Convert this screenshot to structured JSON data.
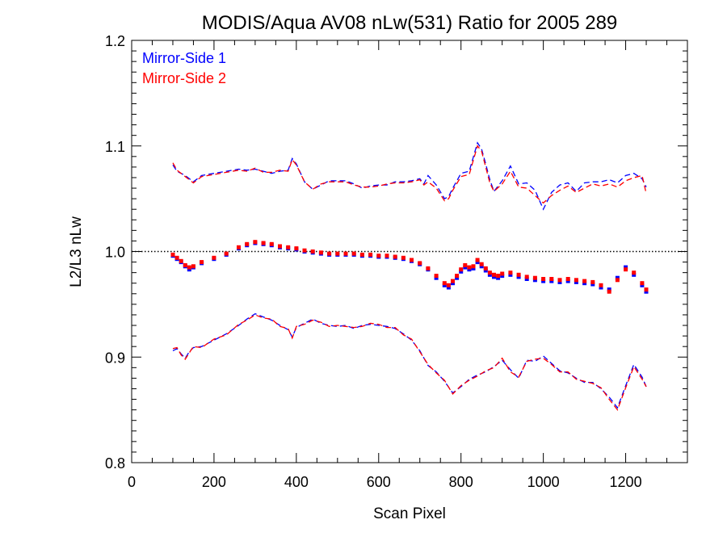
{
  "colors": {
    "series1": "#0000ff",
    "series2": "#ff0000",
    "reference": "#000000",
    "axis": "#000000"
  },
  "chart_data": {
    "type": "scatter",
    "title": "MODIS/Aqua AV08 nLw(531) Ratio for 2005 289",
    "xlabel": "Scan Pixel",
    "ylabel": "L2/L3 nLw",
    "xlim": [
      0,
      1350
    ],
    "ylim": [
      0.8,
      1.2
    ],
    "xticks": [
      0,
      200,
      400,
      600,
      800,
      1000,
      1200
    ],
    "xtick_labels": [
      "0",
      "200",
      "400",
      "600",
      "800",
      "1000",
      "1200"
    ],
    "yticks": [
      0.8,
      0.9,
      1.0,
      1.1,
      1.2
    ],
    "ytick_labels": [
      "0.8",
      "0.9",
      "1.0",
      "1.1",
      "1.2"
    ],
    "legend_position": "top-left",
    "reference_line": {
      "y": 1.0,
      "style": "dotted"
    },
    "grid": false,
    "series": [
      {
        "name": "Mirror-Side 1",
        "color": "#0000ff",
        "mean": {
          "x": [
            100,
            110,
            120,
            130,
            140,
            150,
            170,
            200,
            230,
            260,
            280,
            300,
            320,
            340,
            360,
            380,
            400,
            420,
            440,
            460,
            480,
            500,
            520,
            540,
            560,
            580,
            600,
            620,
            640,
            660,
            680,
            700,
            720,
            740,
            760,
            770,
            780,
            790,
            800,
            810,
            820,
            830,
            840,
            850,
            860,
            870,
            880,
            890,
            900,
            920,
            940,
            960,
            980,
            1000,
            1020,
            1040,
            1060,
            1080,
            1100,
            1120,
            1140,
            1160,
            1180,
            1200,
            1220,
            1240,
            1250
          ],
          "y": [
            0.996,
            0.993,
            0.99,
            0.986,
            0.983,
            0.985,
            0.989,
            0.993,
            0.997,
            1.003,
            1.006,
            1.008,
            1.007,
            1.006,
            1.004,
            1.003,
            1.002,
            1.0,
            0.999,
            0.998,
            0.997,
            0.997,
            0.997,
            0.997,
            0.996,
            0.996,
            0.995,
            0.995,
            0.994,
            0.993,
            0.991,
            0.988,
            0.983,
            0.975,
            0.968,
            0.966,
            0.97,
            0.975,
            0.981,
            0.985,
            0.983,
            0.984,
            0.99,
            0.986,
            0.982,
            0.978,
            0.976,
            0.975,
            0.977,
            0.978,
            0.976,
            0.974,
            0.973,
            0.972,
            0.972,
            0.971,
            0.972,
            0.971,
            0.97,
            0.969,
            0.966,
            0.964,
            0.975,
            0.985,
            0.978,
            0.968,
            0.962
          ]
        },
        "upper": {
          "x": [
            100,
            110,
            130,
            150,
            170,
            200,
            230,
            260,
            280,
            300,
            320,
            340,
            360,
            380,
            390,
            400,
            420,
            440,
            460,
            480,
            500,
            520,
            540,
            560,
            580,
            600,
            620,
            640,
            660,
            680,
            700,
            710,
            720,
            740,
            760,
            770,
            780,
            800,
            820,
            840,
            850,
            860,
            870,
            880,
            900,
            920,
            940,
            960,
            980,
            1000,
            1020,
            1040,
            1060,
            1080,
            1100,
            1120,
            1140,
            1160,
            1180,
            1200,
            1220,
            1240,
            1250
          ],
          "y": [
            1.082,
            1.076,
            1.072,
            1.066,
            1.072,
            1.074,
            1.076,
            1.078,
            1.077,
            1.078,
            1.076,
            1.074,
            1.076,
            1.077,
            1.088,
            1.083,
            1.066,
            1.059,
            1.063,
            1.067,
            1.067,
            1.067,
            1.064,
            1.06,
            1.062,
            1.063,
            1.063,
            1.066,
            1.066,
            1.067,
            1.069,
            1.064,
            1.072,
            1.063,
            1.05,
            1.052,
            1.06,
            1.074,
            1.076,
            1.103,
            1.097,
            1.083,
            1.068,
            1.057,
            1.067,
            1.081,
            1.064,
            1.065,
            1.058,
            1.04,
            1.056,
            1.063,
            1.065,
            1.057,
            1.065,
            1.066,
            1.066,
            1.068,
            1.065,
            1.072,
            1.074,
            1.069,
            1.061
          ]
        },
        "lower": {
          "x": [
            100,
            110,
            120,
            130,
            140,
            150,
            170,
            200,
            230,
            260,
            280,
            300,
            320,
            340,
            360,
            380,
            390,
            400,
            420,
            440,
            460,
            480,
            500,
            520,
            540,
            560,
            580,
            600,
            620,
            640,
            660,
            680,
            700,
            720,
            740,
            760,
            780,
            800,
            820,
            840,
            860,
            880,
            900,
            920,
            940,
            960,
            980,
            1000,
            1020,
            1040,
            1060,
            1080,
            1100,
            1120,
            1140,
            1160,
            1180,
            1200,
            1220,
            1240,
            1250
          ],
          "y": [
            0.906,
            0.908,
            0.903,
            0.899,
            0.905,
            0.909,
            0.91,
            0.916,
            0.922,
            0.93,
            0.936,
            0.941,
            0.938,
            0.935,
            0.93,
            0.926,
            0.919,
            0.928,
            0.932,
            0.936,
            0.932,
            0.93,
            0.929,
            0.93,
            0.927,
            0.93,
            0.931,
            0.93,
            0.929,
            0.927,
            0.922,
            0.916,
            0.906,
            0.892,
            0.886,
            0.877,
            0.866,
            0.872,
            0.879,
            0.883,
            0.886,
            0.891,
            0.897,
            0.888,
            0.88,
            0.897,
            0.896,
            0.901,
            0.894,
            0.887,
            0.885,
            0.88,
            0.876,
            0.876,
            0.87,
            0.862,
            0.852,
            0.873,
            0.893,
            0.881,
            0.872
          ]
        }
      },
      {
        "name": "Mirror-Side 2",
        "color": "#ff0000",
        "mean": {
          "x": [
            100,
            110,
            120,
            130,
            140,
            150,
            170,
            200,
            230,
            260,
            280,
            300,
            320,
            340,
            360,
            380,
            400,
            420,
            440,
            460,
            480,
            500,
            520,
            540,
            560,
            580,
            600,
            620,
            640,
            660,
            680,
            700,
            720,
            740,
            760,
            770,
            780,
            790,
            800,
            810,
            820,
            830,
            840,
            850,
            860,
            870,
            880,
            890,
            900,
            920,
            940,
            960,
            980,
            1000,
            1020,
            1040,
            1060,
            1080,
            1100,
            1120,
            1140,
            1160,
            1180,
            1200,
            1220,
            1240,
            1250
          ],
          "y": [
            0.997,
            0.994,
            0.991,
            0.987,
            0.985,
            0.986,
            0.99,
            0.994,
            0.998,
            1.004,
            1.007,
            1.009,
            1.008,
            1.007,
            1.005,
            1.004,
            1.003,
            1.001,
            1.0,
            0.999,
            0.998,
            0.998,
            0.998,
            0.998,
            0.997,
            0.997,
            0.996,
            0.996,
            0.995,
            0.994,
            0.992,
            0.989,
            0.984,
            0.977,
            0.97,
            0.968,
            0.972,
            0.977,
            0.983,
            0.987,
            0.985,
            0.986,
            0.992,
            0.988,
            0.984,
            0.98,
            0.978,
            0.977,
            0.979,
            0.98,
            0.978,
            0.976,
            0.975,
            0.974,
            0.974,
            0.973,
            0.974,
            0.973,
            0.972,
            0.971,
            0.968,
            0.962,
            0.973,
            0.983,
            0.98,
            0.97,
            0.964
          ]
        },
        "upper": {
          "x": [
            100,
            110,
            130,
            150,
            170,
            200,
            230,
            260,
            280,
            300,
            320,
            340,
            360,
            380,
            390,
            400,
            420,
            440,
            460,
            480,
            500,
            520,
            540,
            560,
            580,
            600,
            620,
            640,
            660,
            680,
            700,
            710,
            720,
            740,
            760,
            770,
            780,
            800,
            820,
            840,
            850,
            860,
            870,
            880,
            900,
            920,
            940,
            960,
            980,
            1000,
            1020,
            1040,
            1060,
            1080,
            1100,
            1120,
            1140,
            1160,
            1180,
            1200,
            1220,
            1240,
            1250
          ],
          "y": [
            1.084,
            1.077,
            1.071,
            1.065,
            1.071,
            1.073,
            1.075,
            1.077,
            1.076,
            1.079,
            1.075,
            1.075,
            1.077,
            1.076,
            1.087,
            1.082,
            1.066,
            1.059,
            1.064,
            1.066,
            1.066,
            1.066,
            1.063,
            1.061,
            1.061,
            1.062,
            1.064,
            1.065,
            1.065,
            1.066,
            1.068,
            1.063,
            1.066,
            1.06,
            1.048,
            1.05,
            1.058,
            1.071,
            1.073,
            1.1,
            1.095,
            1.08,
            1.065,
            1.057,
            1.064,
            1.076,
            1.061,
            1.06,
            1.053,
            1.046,
            1.053,
            1.058,
            1.062,
            1.056,
            1.06,
            1.064,
            1.062,
            1.064,
            1.061,
            1.067,
            1.07,
            1.072,
            1.055
          ]
        },
        "lower": {
          "x": [
            100,
            110,
            120,
            130,
            140,
            150,
            170,
            200,
            230,
            260,
            280,
            300,
            320,
            340,
            360,
            380,
            390,
            400,
            420,
            440,
            460,
            480,
            500,
            520,
            540,
            560,
            580,
            600,
            620,
            640,
            660,
            680,
            700,
            720,
            740,
            760,
            780,
            800,
            820,
            840,
            860,
            880,
            900,
            920,
            940,
            960,
            980,
            1000,
            1020,
            1040,
            1060,
            1080,
            1100,
            1120,
            1140,
            1160,
            1180,
            1200,
            1220,
            1240,
            1250
          ],
          "y": [
            0.908,
            0.909,
            0.902,
            0.898,
            0.904,
            0.91,
            0.909,
            0.917,
            0.921,
            0.931,
            0.935,
            0.94,
            0.937,
            0.936,
            0.929,
            0.927,
            0.918,
            0.929,
            0.931,
            0.935,
            0.933,
            0.929,
            0.93,
            0.929,
            0.928,
            0.929,
            0.932,
            0.931,
            0.928,
            0.928,
            0.921,
            0.917,
            0.905,
            0.893,
            0.885,
            0.878,
            0.865,
            0.873,
            0.878,
            0.882,
            0.887,
            0.89,
            0.899,
            0.886,
            0.881,
            0.896,
            0.898,
            0.899,
            0.893,
            0.886,
            0.886,
            0.879,
            0.877,
            0.875,
            0.871,
            0.86,
            0.85,
            0.871,
            0.891,
            0.879,
            0.872
          ]
        }
      }
    ]
  }
}
